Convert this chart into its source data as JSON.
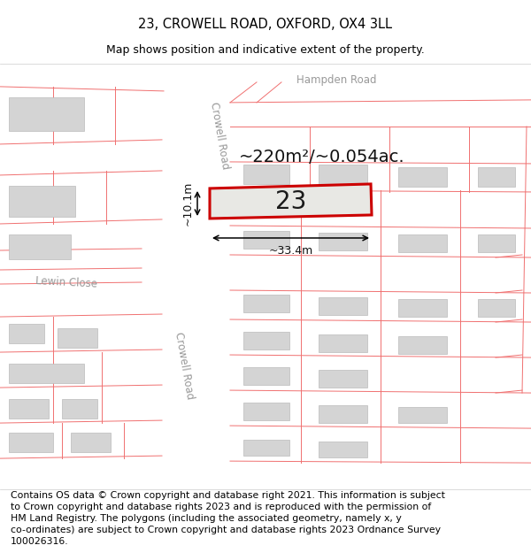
{
  "title": "23, CROWELL ROAD, OXFORD, OX4 3LL",
  "subtitle": "Map shows position and indicative extent of the property.",
  "footer": "Contains OS data © Crown copyright and database right 2021. This information is subject\nto Crown copyright and database rights 2023 and is reproduced with the permission of\nHM Land Registry. The polygons (including the associated geometry, namely x, y\nco-ordinates) are subject to Crown copyright and database rights 2023 Ordnance Survey\n100026316.",
  "map_bg": "#f2f2ef",
  "road_color": "#ffffff",
  "building_fill": "#d4d4d4",
  "building_edge": "#bbbbbb",
  "cadastral_color": "#f07070",
  "plot_edge_color": "#cc0000",
  "road_label_color": "#999999",
  "area_text": "~220m²/~0.054ac.",
  "number_text": "23",
  "dim_width": "~33.4m",
  "dim_height": "~10.1m",
  "title_fontsize": 10.5,
  "subtitle_fontsize": 9,
  "footer_fontsize": 7.8,
  "road_label_fontsize": 8.5,
  "area_fontsize": 14,
  "number_fontsize": 20
}
